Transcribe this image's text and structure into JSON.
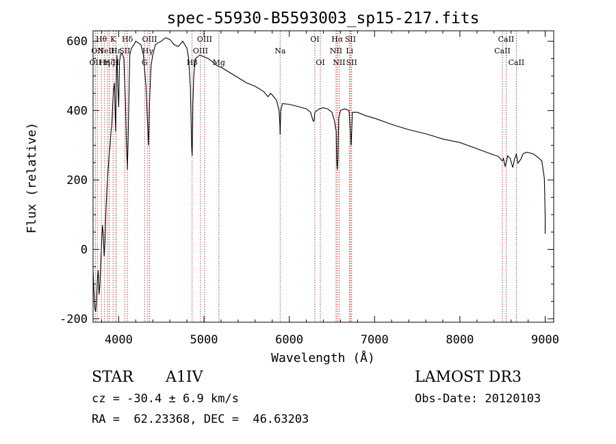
{
  "chart_data": {
    "type": "line",
    "title": "spec-55930-B5593003_sp15-217.fits",
    "xlabel": "Wavelength (Å)",
    "ylabel": "Flux (relative)",
    "xlim": [
      3700,
      9100
    ],
    "ylim": [
      -210,
      630
    ],
    "xticks": [
      4000,
      5000,
      6000,
      7000,
      8000,
      9000
    ],
    "yticks": [
      -200,
      0,
      200,
      400,
      600
    ],
    "grid": false,
    "colors": {
      "spectrum": "#000000",
      "lines": "#b22222",
      "axes": "#000000"
    },
    "series": [
      {
        "name": "flux",
        "x": [
          3700,
          3710,
          3720,
          3730,
          3740,
          3750,
          3760,
          3770,
          3780,
          3790,
          3800,
          3810,
          3820,
          3830,
          3840,
          3850,
          3860,
          3870,
          3880,
          3890,
          3900,
          3910,
          3920,
          3930,
          3940,
          3950,
          3960,
          3965,
          3970,
          3975,
          3980,
          3990,
          4000,
          4010,
          4020,
          4040,
          4060,
          4080,
          4090,
          4100,
          4102,
          4110,
          4130,
          4150,
          4180,
          4200,
          4230,
          4260,
          4290,
          4320,
          4340,
          4350,
          4360,
          4380,
          4400,
          4430,
          4460,
          4500,
          4550,
          4600,
          4650,
          4700,
          4750,
          4800,
          4820,
          4840,
          4850,
          4855,
          4861,
          4865,
          4870,
          4880,
          4900,
          4950,
          5000,
          5050,
          5100,
          5150,
          5200,
          5300,
          5400,
          5500,
          5600,
          5700,
          5750,
          5780,
          5800,
          5850,
          5880,
          5890,
          5893,
          5896,
          5900,
          5920,
          6000,
          6100,
          6200,
          6250,
          6280,
          6290,
          6300,
          6350,
          6400,
          6450,
          6500,
          6530,
          6550,
          6555,
          6563,
          6570,
          6575,
          6580,
          6600,
          6650,
          6700,
          6720,
          6725,
          6730,
          6740,
          6800,
          6900,
          7000,
          7200,
          7400,
          7600,
          7800,
          8000,
          8200,
          8400,
          8450,
          8498,
          8510,
          8530,
          8542,
          8560,
          8590,
          8620,
          8640,
          8662,
          8680,
          8720,
          8740,
          8780,
          8820,
          8860,
          8900,
          8960,
          8990,
          9000,
          9000
        ],
        "values": [
          -60,
          -120,
          -170,
          -180,
          -150,
          -90,
          -60,
          -130,
          -100,
          -40,
          20,
          70,
          40,
          -20,
          20,
          110,
          160,
          210,
          240,
          280,
          300,
          340,
          360,
          420,
          460,
          480,
          380,
          340,
          470,
          520,
          560,
          470,
          410,
          540,
          560,
          565,
          550,
          420,
          310,
          250,
          230,
          310,
          560,
          580,
          590,
          600,
          595,
          590,
          560,
          470,
          350,
          300,
          420,
          530,
          560,
          590,
          595,
          600,
          610,
          605,
          590,
          585,
          600,
          580,
          550,
          470,
          360,
          300,
          270,
          310,
          420,
          500,
          550,
          560,
          555,
          550,
          540,
          530,
          525,
          510,
          495,
          480,
          470,
          455,
          440,
          450,
          445,
          430,
          400,
          360,
          330,
          360,
          400,
          420,
          418,
          412,
          405,
          395,
          370,
          370,
          395,
          405,
          408,
          405,
          395,
          370,
          340,
          260,
          230,
          260,
          330,
          380,
          400,
          405,
          400,
          330,
          300,
          330,
          395,
          395,
          385,
          378,
          360,
          345,
          333,
          318,
          308,
          290,
          272,
          268,
          255,
          262,
          240,
          250,
          270,
          262,
          236,
          260,
          274,
          248,
          262,
          275,
          280,
          278,
          275,
          268,
          255,
          205,
          100,
          45
        ]
      }
    ],
    "line_markers": [
      {
        "wl": 3727,
        "label": "OII",
        "row": 3
      },
      {
        "wl": 3750,
        "label": "OII",
        "row": 2
      },
      {
        "wl": 3797,
        "label": "Hθ",
        "row": 1
      },
      {
        "wl": 3835,
        "label": "Hη",
        "row": 3
      },
      {
        "wl": 3869,
        "label": "NeIII",
        "row": 2
      },
      {
        "wl": 3889,
        "label": "Hζ",
        "row": 3
      },
      {
        "wl": 3934,
        "label": "K",
        "row": 1
      },
      {
        "wl": 3968,
        "label": "H",
        "row": 3
      },
      {
        "wl": 3970,
        "label": "Hε",
        "row": 2
      },
      {
        "wl": 4072,
        "label": "SII",
        "row": 2
      },
      {
        "wl": 4102,
        "label": "Hδ",
        "row": 1
      },
      {
        "wl": 4304,
        "label": "G",
        "row": 3
      },
      {
        "wl": 4341,
        "label": "Hγ",
        "row": 2
      },
      {
        "wl": 4363,
        "label": "OIII",
        "row": 1
      },
      {
        "wl": 4861,
        "label": "Hβ",
        "row": 3
      },
      {
        "wl": 4959,
        "label": "OIII",
        "row": 2
      },
      {
        "wl": 5007,
        "label": "OIII",
        "row": 1
      },
      {
        "wl": 5175,
        "label": "Mg",
        "row": 3
      },
      {
        "wl": 5893,
        "label": "Na",
        "row": 2
      },
      {
        "wl": 6300,
        "label": "OI",
        "row": 1
      },
      {
        "wl": 6364,
        "label": "OI",
        "row": 3
      },
      {
        "wl": 6548,
        "label": "NII",
        "row": 2
      },
      {
        "wl": 6563,
        "label": "Hα",
        "row": 1
      },
      {
        "wl": 6584,
        "label": "NII",
        "row": 3
      },
      {
        "wl": 6707,
        "label": "Li",
        "row": 2
      },
      {
        "wl": 6717,
        "label": "SII",
        "row": 1
      },
      {
        "wl": 6731,
        "label": "SII",
        "row": 3
      },
      {
        "wl": 8498,
        "label": "CaII",
        "row": 2
      },
      {
        "wl": 8542,
        "label": "CaII",
        "row": 1
      },
      {
        "wl": 8662,
        "label": "CaII",
        "row": 3
      }
    ]
  },
  "info": {
    "object_class": "STAR",
    "subclass": "A1IV",
    "survey": "LAMOST DR3",
    "redshift": "cz = -30.4 ± 6.9 km/s",
    "obs_date": "Obs-Date: 20120103",
    "coords": "RA =  62.23368, DEC =  46.63203"
  }
}
